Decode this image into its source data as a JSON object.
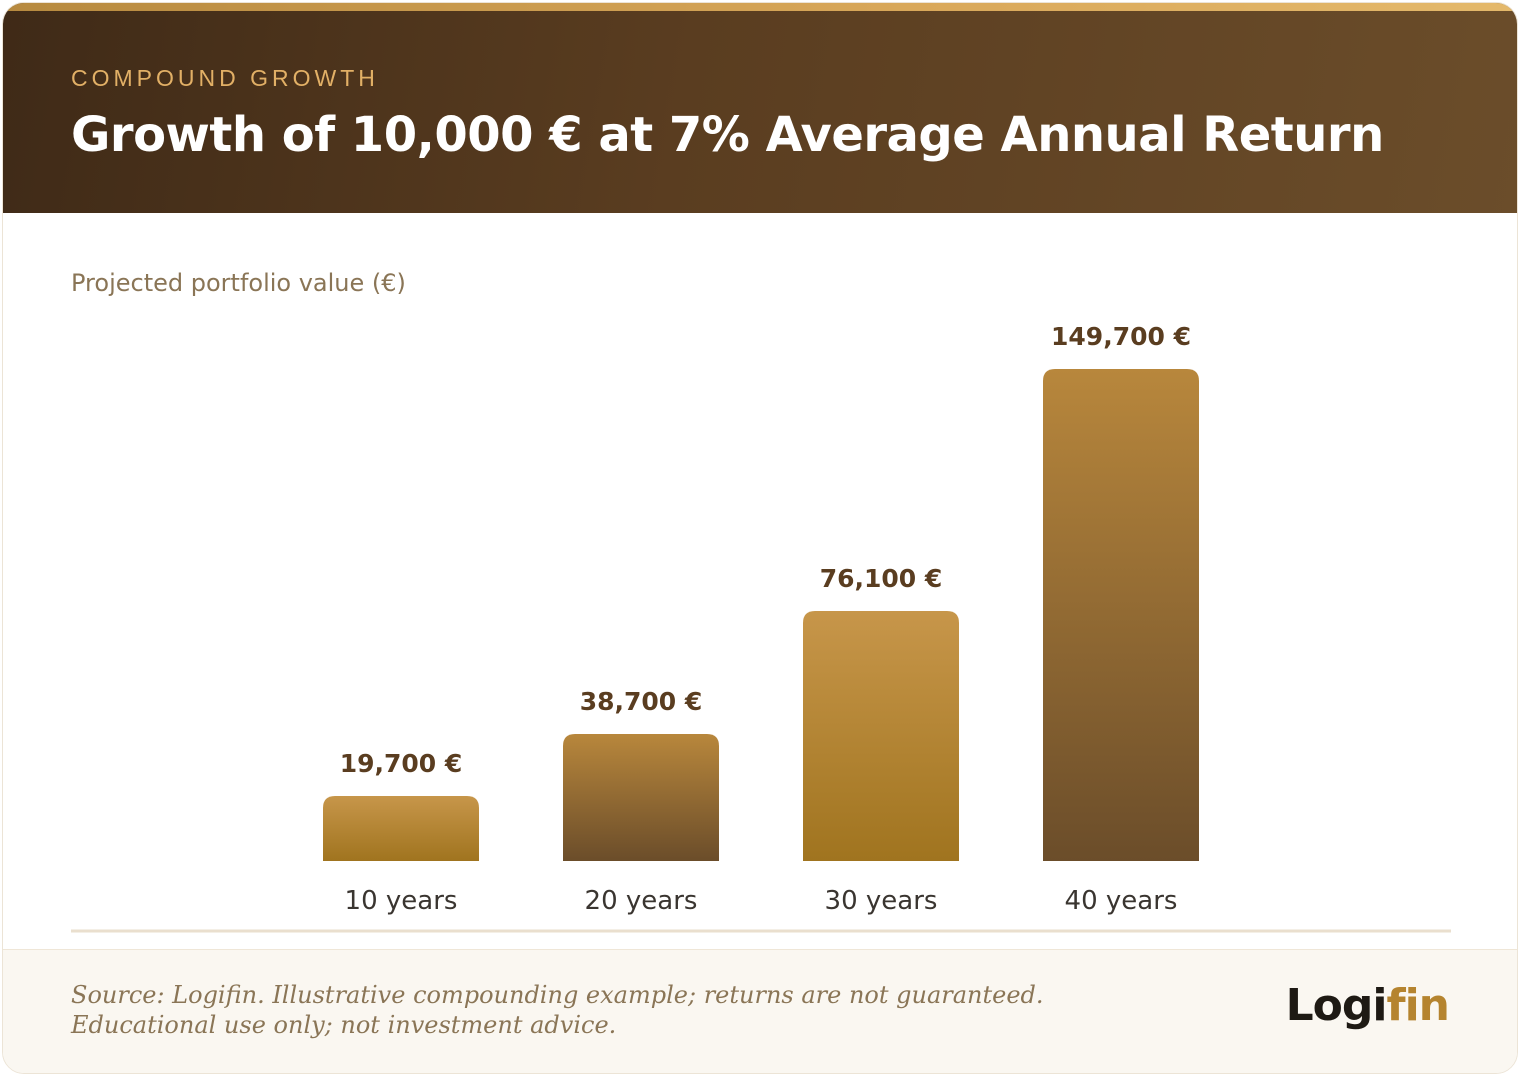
{
  "header": {
    "eyebrow": "COMPOUND GROWTH",
    "title": "Growth of 10,000 € at 7% Average Annual Return"
  },
  "chart_data": {
    "type": "bar",
    "title": "Growth of 10,000 € at 7% Average Annual Return",
    "ylabel": "Projected portfolio value (€)",
    "xlabel": "",
    "categories": [
      "10 years",
      "20 years",
      "30 years",
      "40 years"
    ],
    "values": [
      19700,
      38700,
      76100,
      149700
    ],
    "value_labels": [
      "19,700 €",
      "38,700 €",
      "76,100 €",
      "149,700 €"
    ],
    "grid": false,
    "legend": "none"
  },
  "footer": {
    "source_line1": "Source: Logifin. Illustrative compounding example; returns are not guaranteed.",
    "source_line2": "Educational use only; not investment advice.",
    "logo_main": "Logi",
    "logo_accent": "fin"
  },
  "colors": {
    "header_dark": "#3f2a17",
    "eyebrow": "#e2b066",
    "bar_light": "#c7964a",
    "bar_dark": "#6b4d2a",
    "value_label": "#5a3d20",
    "axis_label": "#3a3530",
    "logo_accent": "#b5842f"
  }
}
